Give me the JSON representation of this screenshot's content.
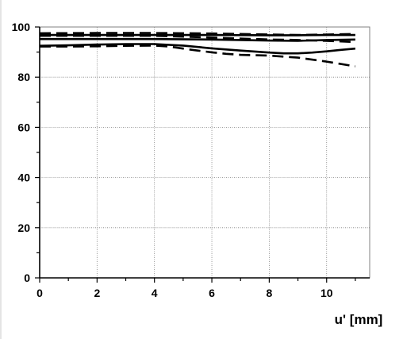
{
  "chart_data": {
    "type": "line",
    "title": "",
    "xlabel": "u' [mm]",
    "ylabel": "",
    "xlim": [
      0,
      11.5
    ],
    "ylim": [
      0,
      100
    ],
    "xticks": [
      0,
      2,
      4,
      6,
      8,
      10
    ],
    "yticks": [
      0,
      20,
      40,
      60,
      80,
      100
    ],
    "grid": true,
    "series": [
      {
        "style": "solid",
        "x": [
          0,
          2,
          4,
          6,
          8,
          9,
          10,
          11
        ],
        "y": [
          96.8,
          96.8,
          96.8,
          96.8,
          96.7,
          96.7,
          96.8,
          96.8
        ]
      },
      {
        "style": "dashed",
        "x": [
          0,
          2,
          4,
          6,
          8,
          9,
          10,
          11
        ],
        "y": [
          97.5,
          97.6,
          97.6,
          97.4,
          97.0,
          96.8,
          97.0,
          97.2
        ]
      },
      {
        "style": "solid",
        "x": [
          0,
          2,
          4,
          6,
          8,
          9,
          10,
          11
        ],
        "y": [
          95.2,
          95.2,
          95.2,
          95.0,
          94.6,
          94.5,
          94.8,
          95.0
        ]
      },
      {
        "style": "dashed",
        "x": [
          0,
          2,
          4,
          6,
          8,
          9,
          10,
          11
        ],
        "y": [
          96.5,
          96.5,
          96.5,
          95.8,
          95.0,
          94.8,
          94.5,
          94.0
        ]
      },
      {
        "style": "solid",
        "x": [
          0,
          1,
          2,
          3,
          4,
          5,
          6,
          7,
          8,
          8.5,
          9,
          9.5,
          10,
          10.5,
          11
        ],
        "y": [
          92.5,
          92.7,
          93.0,
          93.2,
          93.2,
          92.6,
          91.5,
          90.6,
          89.8,
          89.5,
          89.5,
          89.8,
          90.3,
          90.9,
          91.4
        ]
      },
      {
        "style": "dashed",
        "x": [
          0,
          1,
          2,
          3,
          4,
          4.5,
          5,
          5.5,
          6,
          6.5,
          7,
          8,
          9,
          10,
          11
        ],
        "y": [
          92.2,
          92.2,
          92.3,
          92.5,
          92.6,
          92.2,
          91.4,
          90.6,
          89.9,
          89.3,
          88.9,
          88.6,
          87.8,
          86.2,
          84.3
        ]
      }
    ]
  }
}
